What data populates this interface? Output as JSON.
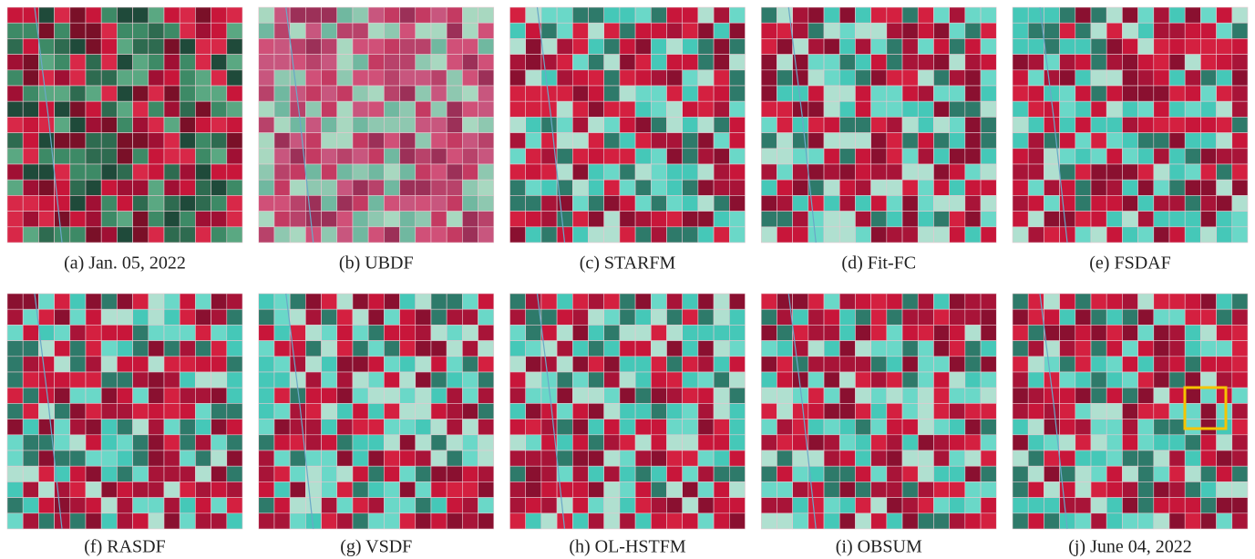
{
  "panels": [
    {
      "label": "(a) Jan. 05, 2022"
    },
    {
      "label": "(b) UBDF"
    },
    {
      "label": "(c) STARFM"
    },
    {
      "label": "(d) Fit-FC"
    },
    {
      "label": "(e) FSDAF"
    },
    {
      "label": "(f) RASDF"
    },
    {
      "label": "(g) VSDF"
    },
    {
      "label": "(h) OL-HSTFM"
    },
    {
      "label": "(i) OBSUM"
    },
    {
      "label": "(j) June 04, 2022"
    }
  ]
}
